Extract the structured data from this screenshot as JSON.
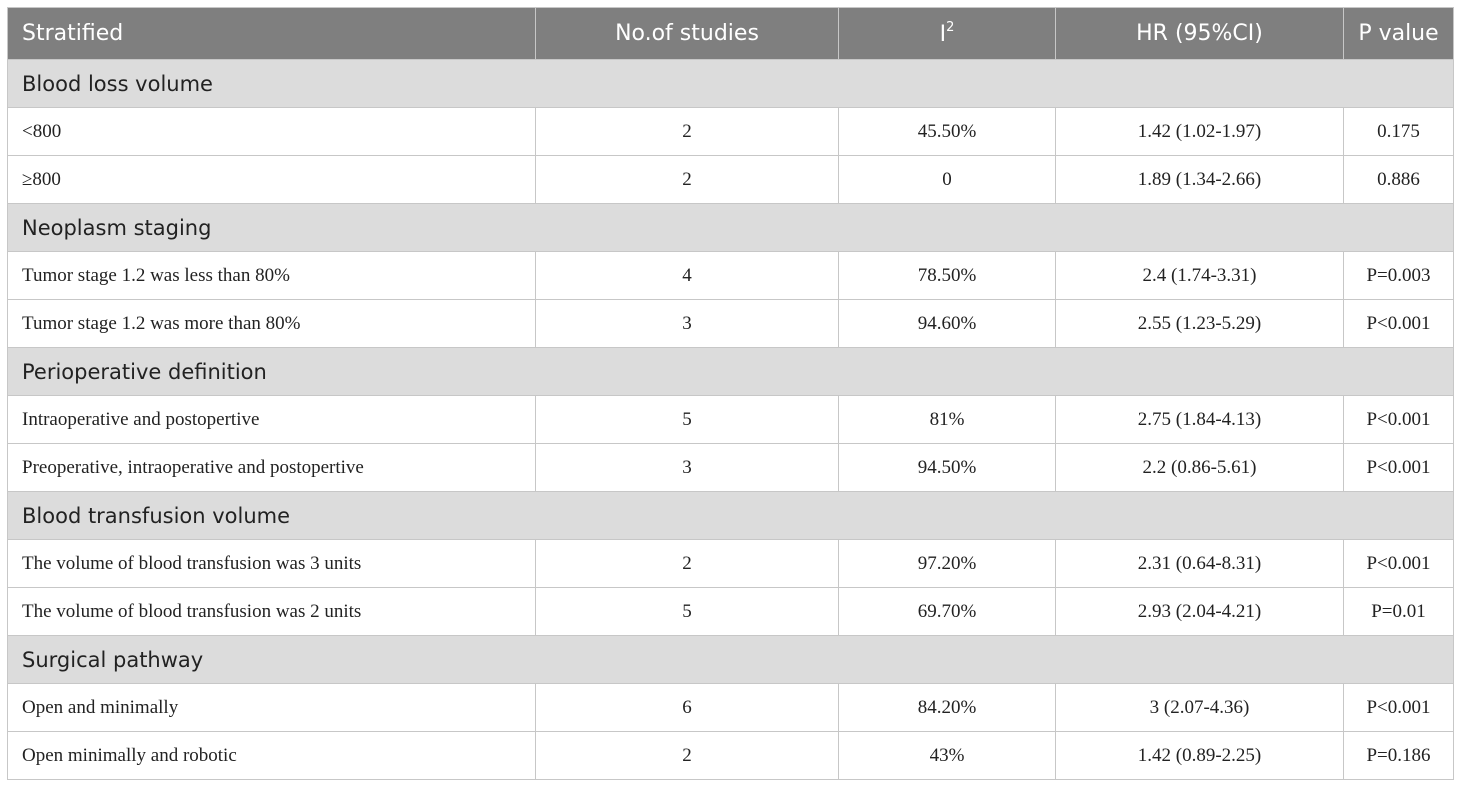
{
  "table": {
    "headers": [
      "Stratified",
      "No.of studies",
      "I",
      "HR (95%CI)",
      "P value"
    ],
    "header_sup": "2",
    "groups": [
      {
        "label": "Blood loss volume",
        "rows": [
          [
            "<800",
            "2",
            "45.50%",
            "1.42 (1.02-1.97)",
            "0.175"
          ],
          [
            "≥800",
            "2",
            "0",
            "1.89 (1.34-2.66)",
            "0.886"
          ]
        ]
      },
      {
        "label": "Neoplasm staging",
        "rows": [
          [
            "Tumor stage 1.2 was less than 80%",
            "4",
            "78.50%",
            "2.4 (1.74-3.31)",
            "P=0.003"
          ],
          [
            "Tumor stage 1.2 was more than 80%",
            "3",
            "94.60%",
            "2.55 (1.23-5.29)",
            "P<0.001"
          ]
        ]
      },
      {
        "label": "Perioperative definition",
        "rows": [
          [
            "Intraoperative and postopertive",
            "5",
            "81%",
            "2.75 (1.84-4.13)",
            "P<0.001"
          ],
          [
            "Preoperative, intraoperative and postopertive",
            "3",
            "94.50%",
            "2.2 (0.86-5.61)",
            "P<0.001"
          ]
        ]
      },
      {
        "label": "Blood transfusion volume",
        "rows": [
          [
            "The volume of blood transfusion was 3 units",
            "2",
            "97.20%",
            "2.31 (0.64-8.31)",
            "P<0.001"
          ],
          [
            "The volume of blood transfusion was 2 units",
            "5",
            "69.70%",
            "2.93 (2.04-4.21)",
            "P=0.01"
          ]
        ]
      },
      {
        "label": "Surgical pathway",
        "rows": [
          [
            "Open and minimally",
            "6",
            "84.20%",
            "3 (2.07-4.36)",
            "P<0.001"
          ],
          [
            "Open minimally and robotic",
            "2",
            "43%",
            "1.42 (0.89-2.25)",
            "P=0.186"
          ]
        ]
      }
    ]
  }
}
